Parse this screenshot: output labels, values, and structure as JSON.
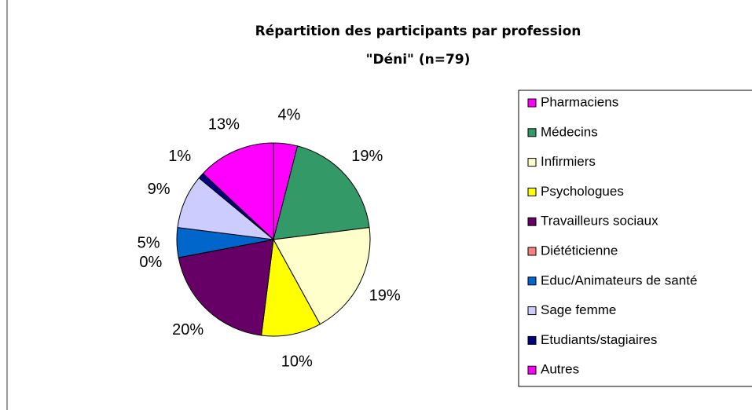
{
  "chart_data": {
    "type": "pie",
    "title": "Répartition des participants par profession",
    "subtitle": "\"Déni\"  (n=79)",
    "categories": [
      "Pharmaciens",
      "Médecins",
      "Infirmiers",
      "Psychologues",
      "Travailleurs sociaux",
      "Diététicienne",
      "Educ/Animateurs de santé",
      "Sage femme",
      "Etudiants/stagiaires",
      "Autres"
    ],
    "values": [
      4,
      19,
      19,
      10,
      20,
      0,
      5,
      9,
      1,
      13
    ],
    "value_labels": [
      "4%",
      "19%",
      "19%",
      "10%",
      "20%",
      "0%",
      "5%",
      "9%",
      "1%",
      "13%"
    ],
    "colors": [
      "#ff00ff",
      "#339966",
      "#ffffcc",
      "#ffff00",
      "#660066",
      "#ff8080",
      "#0066cc",
      "#ccccff",
      "#000080",
      "#ff00ff"
    ],
    "legend": "right"
  }
}
